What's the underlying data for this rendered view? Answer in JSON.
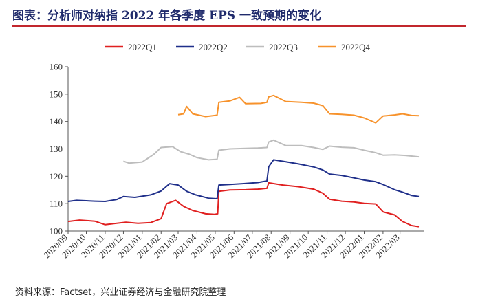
{
  "title": "图表：分析师对纳指 2022 年各季度 EPS 一致预期的变化",
  "source": "资料来源：Factset，兴业证券经济与金融研究院整理",
  "chart_data": {
    "type": "line",
    "title": "",
    "xlabel": "",
    "ylabel": "",
    "ylim": [
      100,
      160
    ],
    "yticks": [
      100,
      110,
      120,
      130,
      140,
      150,
      160
    ],
    "xlim": [
      "2020-09-01",
      "2022-04-10"
    ],
    "xticks": [
      "2020/09",
      "2020/10",
      "2020/11",
      "2020/12",
      "2021/01",
      "2021/02",
      "2021/03",
      "2021/04",
      "2021/05",
      "2021/06",
      "2021/07",
      "2021/08",
      "2021/09",
      "2021/10",
      "2021/11",
      "2021/12",
      "2022/01",
      "2022/02",
      "2022/03"
    ],
    "grid": false,
    "legend_position": "top",
    "series": [
      {
        "name": "2022Q1",
        "color": "#e02020",
        "points": [
          [
            "2020-09-01",
            103.5
          ],
          [
            "2020-09-20",
            104.0
          ],
          [
            "2020-10-15",
            103.6
          ],
          [
            "2020-11-01",
            102.3
          ],
          [
            "2020-11-20",
            102.8
          ],
          [
            "2020-12-05",
            103.2
          ],
          [
            "2020-12-25",
            102.8
          ],
          [
            "2021-01-15",
            103.1
          ],
          [
            "2021-02-01",
            104.5
          ],
          [
            "2021-02-10",
            110.0
          ],
          [
            "2021-02-25",
            111.2
          ],
          [
            "2021-03-10",
            109.0
          ],
          [
            "2021-03-25",
            107.5
          ],
          [
            "2021-04-15",
            106.3
          ],
          [
            "2021-04-30",
            106.1
          ],
          [
            "2021-05-05",
            106.3
          ],
          [
            "2021-05-07",
            114.5
          ],
          [
            "2021-05-25",
            115.0
          ],
          [
            "2021-06-20",
            115.1
          ],
          [
            "2021-07-10",
            115.3
          ],
          [
            "2021-07-25",
            115.6
          ],
          [
            "2021-07-28",
            117.6
          ],
          [
            "2021-08-20",
            116.8
          ],
          [
            "2021-09-15",
            116.2
          ],
          [
            "2021-10-10",
            115.3
          ],
          [
            "2021-10-25",
            113.8
          ],
          [
            "2021-11-05",
            111.6
          ],
          [
            "2021-11-25",
            110.9
          ],
          [
            "2021-12-15",
            110.6
          ],
          [
            "2022-01-01",
            110.1
          ],
          [
            "2022-01-20",
            109.9
          ],
          [
            "2022-02-01",
            107.0
          ],
          [
            "2022-02-20",
            105.9
          ],
          [
            "2022-03-05",
            103.5
          ],
          [
            "2022-03-20",
            102.0
          ],
          [
            "2022-04-01",
            101.6
          ]
        ]
      },
      {
        "name": "2022Q2",
        "color": "#1f2f8a",
        "points": [
          [
            "2020-09-01",
            110.8
          ],
          [
            "2020-09-15",
            111.2
          ],
          [
            "2020-10-15",
            110.9
          ],
          [
            "2020-11-01",
            110.8
          ],
          [
            "2020-11-20",
            111.5
          ],
          [
            "2020-12-01",
            112.6
          ],
          [
            "2020-12-20",
            112.3
          ],
          [
            "2021-01-15",
            113.2
          ],
          [
            "2021-02-01",
            114.6
          ],
          [
            "2021-02-15",
            117.3
          ],
          [
            "2021-03-01",
            116.8
          ],
          [
            "2021-03-15",
            114.5
          ],
          [
            "2021-03-30",
            113.2
          ],
          [
            "2021-04-20",
            112.0
          ],
          [
            "2021-05-04",
            111.8
          ],
          [
            "2021-05-07",
            116.8
          ],
          [
            "2021-05-25",
            117.0
          ],
          [
            "2021-06-15",
            117.3
          ],
          [
            "2021-07-10",
            117.7
          ],
          [
            "2021-07-25",
            118.3
          ],
          [
            "2021-07-28",
            123.5
          ],
          [
            "2021-08-05",
            126.0
          ],
          [
            "2021-08-25",
            125.3
          ],
          [
            "2021-09-15",
            124.5
          ],
          [
            "2021-10-10",
            123.4
          ],
          [
            "2021-10-25",
            122.3
          ],
          [
            "2021-11-05",
            120.8
          ],
          [
            "2021-11-25",
            120.3
          ],
          [
            "2021-12-15",
            119.4
          ],
          [
            "2022-01-01",
            118.6
          ],
          [
            "2022-01-20",
            118.0
          ],
          [
            "2022-02-01",
            117.0
          ],
          [
            "2022-02-20",
            115.1
          ],
          [
            "2022-03-05",
            114.2
          ],
          [
            "2022-03-20",
            113.0
          ],
          [
            "2022-04-01",
            112.6
          ]
        ]
      },
      {
        "name": "2022Q3",
        "color": "#bdbdbd",
        "points": [
          [
            "2020-12-01",
            125.5
          ],
          [
            "2020-12-10",
            124.8
          ],
          [
            "2021-01-01",
            125.2
          ],
          [
            "2021-01-20",
            128.0
          ],
          [
            "2021-02-01",
            130.5
          ],
          [
            "2021-02-20",
            130.8
          ],
          [
            "2021-03-05",
            129.0
          ],
          [
            "2021-03-20",
            128.0
          ],
          [
            "2021-04-01",
            126.8
          ],
          [
            "2021-04-20",
            126.0
          ],
          [
            "2021-05-04",
            126.2
          ],
          [
            "2021-05-07",
            129.5
          ],
          [
            "2021-05-25",
            130.0
          ],
          [
            "2021-06-20",
            130.2
          ],
          [
            "2021-07-10",
            130.3
          ],
          [
            "2021-07-25",
            130.5
          ],
          [
            "2021-07-28",
            132.5
          ],
          [
            "2021-08-05",
            133.2
          ],
          [
            "2021-08-25",
            131.2
          ],
          [
            "2021-09-20",
            131.2
          ],
          [
            "2021-10-10",
            130.5
          ],
          [
            "2021-10-25",
            129.8
          ],
          [
            "2021-11-05",
            131.0
          ],
          [
            "2021-11-25",
            130.6
          ],
          [
            "2021-12-15",
            130.4
          ],
          [
            "2022-01-01",
            129.5
          ],
          [
            "2022-01-20",
            128.6
          ],
          [
            "2022-02-01",
            127.7
          ],
          [
            "2022-02-20",
            127.8
          ],
          [
            "2022-03-10",
            127.6
          ],
          [
            "2022-04-01",
            127.1
          ]
        ]
      },
      {
        "name": "2022Q4",
        "color": "#f7922b",
        "points": [
          [
            "2021-03-01",
            142.5
          ],
          [
            "2021-03-10",
            142.8
          ],
          [
            "2021-03-15",
            145.5
          ],
          [
            "2021-03-25",
            142.8
          ],
          [
            "2021-04-15",
            141.8
          ],
          [
            "2021-05-04",
            142.3
          ],
          [
            "2021-05-07",
            147.0
          ],
          [
            "2021-05-25",
            147.5
          ],
          [
            "2021-06-10",
            148.8
          ],
          [
            "2021-06-20",
            146.5
          ],
          [
            "2021-07-15",
            146.6
          ],
          [
            "2021-07-25",
            147.0
          ],
          [
            "2021-07-28",
            149.0
          ],
          [
            "2021-08-05",
            149.5
          ],
          [
            "2021-08-25",
            147.3
          ],
          [
            "2021-09-20",
            147.0
          ],
          [
            "2021-10-10",
            146.7
          ],
          [
            "2021-10-25",
            145.8
          ],
          [
            "2021-11-05",
            142.8
          ],
          [
            "2021-11-25",
            142.6
          ],
          [
            "2021-12-15",
            142.3
          ],
          [
            "2022-01-01",
            141.3
          ],
          [
            "2022-01-20",
            139.5
          ],
          [
            "2022-02-01",
            142.0
          ],
          [
            "2022-02-20",
            142.4
          ],
          [
            "2022-03-05",
            142.8
          ],
          [
            "2022-03-20",
            142.2
          ],
          [
            "2022-04-01",
            142.1
          ]
        ]
      }
    ]
  }
}
